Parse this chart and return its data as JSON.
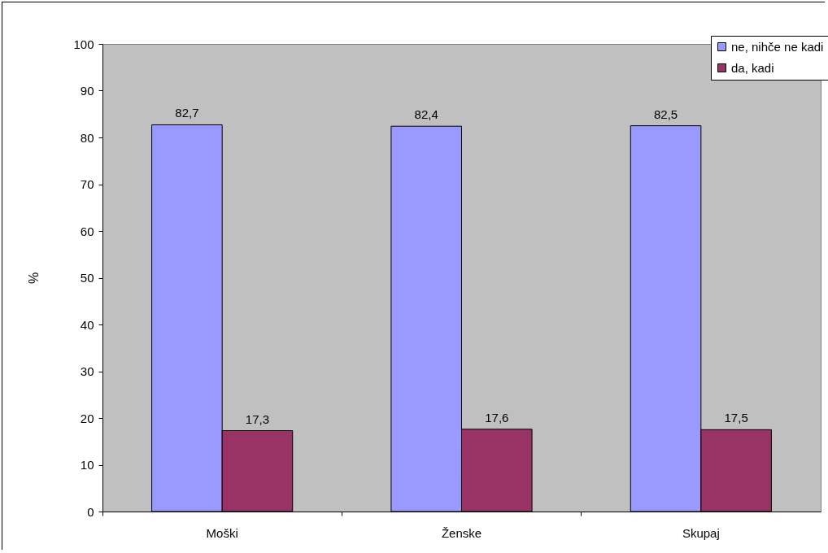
{
  "chart_data": {
    "type": "bar",
    "ylabel": "%",
    "categories": [
      "Moški",
      "Ženske",
      "Skupaj"
    ],
    "series": [
      {
        "name": "ne, nihče ne kadi",
        "color": "#9999ff",
        "values": [
          82.7,
          82.4,
          82.5
        ],
        "value_labels": [
          "82,7",
          "82,4",
          "82,5"
        ]
      },
      {
        "name": "da, kadi",
        "color": "#993366",
        "values": [
          17.3,
          17.6,
          17.5
        ],
        "value_labels": [
          "17,3",
          "17,6",
          "17,5"
        ]
      }
    ],
    "ylim": [
      0,
      100
    ],
    "yticks": [
      0,
      10,
      20,
      30,
      40,
      50,
      60,
      70,
      80,
      90,
      100
    ],
    "grid": false,
    "legend": "top right"
  }
}
